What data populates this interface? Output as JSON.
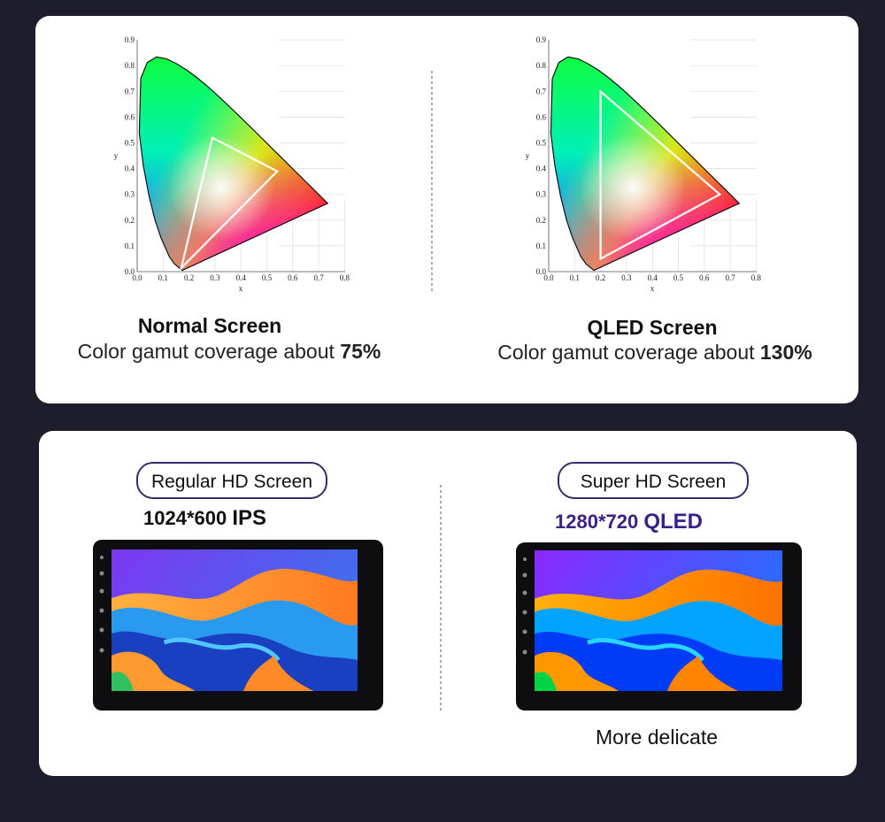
{
  "gamut": {
    "x_ticks": [
      "0.0",
      "0.1",
      "0.2",
      "0.3",
      "0.4",
      "0.5",
      "0.6",
      "0.7",
      "0.8"
    ],
    "y_ticks": [
      "0.0",
      "0.1",
      "0.2",
      "0.3",
      "0.4",
      "0.5",
      "0.6",
      "0.7",
      "0.8",
      "0.9"
    ],
    "x_label": "x",
    "y_label": "y"
  },
  "panels": [
    {
      "title": "Normal Screen",
      "caption": "Color gamut coverage about",
      "coverage": "75%"
    },
    {
      "title": "QLED Screen",
      "caption": "Color gamut coverage about",
      "coverage": "130%"
    }
  ],
  "screens": [
    {
      "label": "Regular HD Screen",
      "resolution": "1024*600",
      "panel": "IPS"
    },
    {
      "label": "Super HD Screen",
      "resolution": "1280*720",
      "panel": "QLED",
      "note": "More delicate"
    }
  ]
}
